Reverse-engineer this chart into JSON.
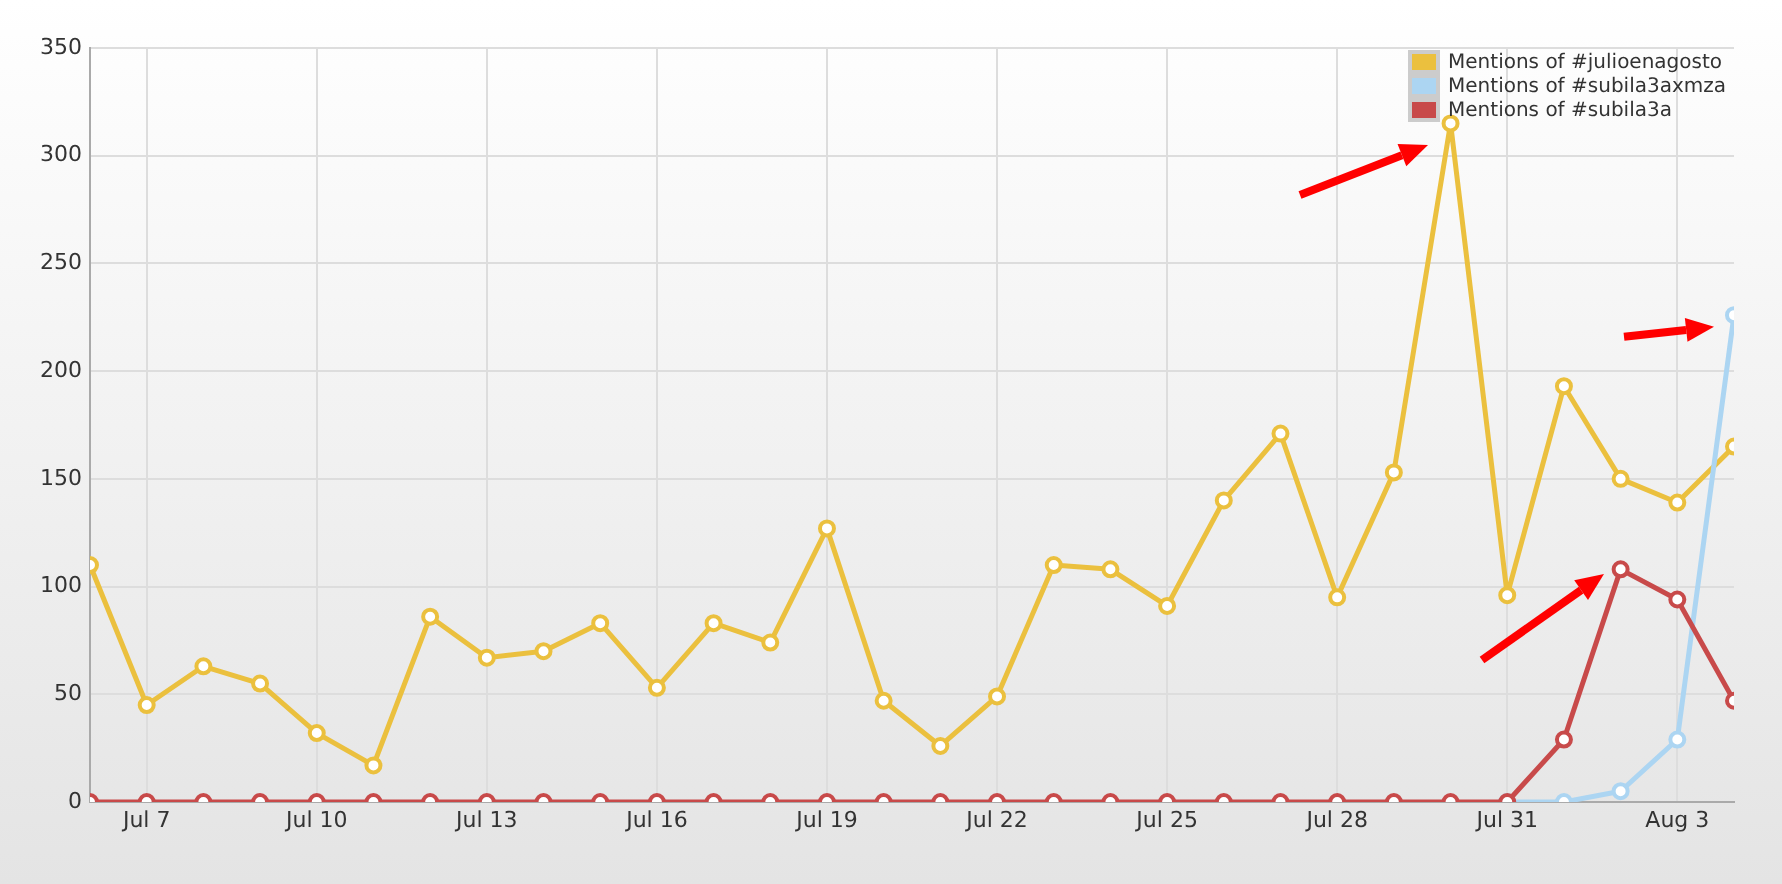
{
  "chart_data": {
    "type": "line",
    "x": [
      "--07-06",
      "--07-07",
      "--07-08",
      "--07-09",
      "--07-10",
      "--07-11",
      "--07-12",
      "--07-13",
      "--07-14",
      "--07-15",
      "--07-16",
      "--07-17",
      "--07-18",
      "--07-19",
      "--07-20",
      "--07-21",
      "--07-22",
      "--07-23",
      "--07-24",
      "--07-25",
      "--07-26",
      "--07-27",
      "--07-28",
      "--07-29",
      "--07-30",
      "--07-31",
      "--08-01",
      "--08-02",
      "--08-03",
      "--08-04"
    ],
    "series": [
      {
        "name": "Mentions of #julioenagosto",
        "color": "#ebc03e",
        "values": [
          110,
          45,
          63,
          55,
          32,
          17,
          86,
          67,
          70,
          83,
          53,
          83,
          74,
          127,
          47,
          26,
          49,
          110,
          108,
          91,
          140,
          171,
          95,
          153,
          315,
          96,
          193,
          150,
          139,
          165
        ]
      },
      {
        "name": "Mentions of #subila3axmza",
        "color": "#acd5f2",
        "values": [
          null,
          null,
          null,
          null,
          null,
          null,
          null,
          null,
          null,
          null,
          null,
          null,
          null,
          null,
          null,
          null,
          null,
          null,
          null,
          null,
          null,
          null,
          null,
          null,
          null,
          0,
          0,
          5,
          29,
          226
        ]
      },
      {
        "name": "Mentions of #subila3a",
        "color": "#c84a4a",
        "values": [
          0,
          0,
          0,
          0,
          0,
          0,
          0,
          0,
          0,
          0,
          0,
          0,
          0,
          0,
          0,
          0,
          0,
          0,
          0,
          0,
          0,
          0,
          0,
          0,
          0,
          0,
          29,
          108,
          94,
          47
        ]
      }
    ],
    "xlim": [
      "--07-06",
      "--08-04"
    ],
    "xticks": [
      {
        "value": "--07-07",
        "label": "Jul 7"
      },
      {
        "value": "--07-10",
        "label": "Jul 10"
      },
      {
        "value": "--07-13",
        "label": "Jul 13"
      },
      {
        "value": "--07-16",
        "label": "Jul 16"
      },
      {
        "value": "--07-19",
        "label": "Jul 19"
      },
      {
        "value": "--07-22",
        "label": "Jul 22"
      },
      {
        "value": "--07-25",
        "label": "Jul 25"
      },
      {
        "value": "--07-28",
        "label": "Jul 28"
      },
      {
        "value": "--07-31",
        "label": "Jul 31"
      },
      {
        "value": "--08-03",
        "label": "Aug 3"
      }
    ],
    "ylim": [
      0,
      350
    ],
    "yticks": [
      0,
      50,
      100,
      150,
      200,
      250,
      300,
      350
    ],
    "grid": true,
    "legend": "top right",
    "marker": "circle",
    "line_style": "solid"
  }
}
